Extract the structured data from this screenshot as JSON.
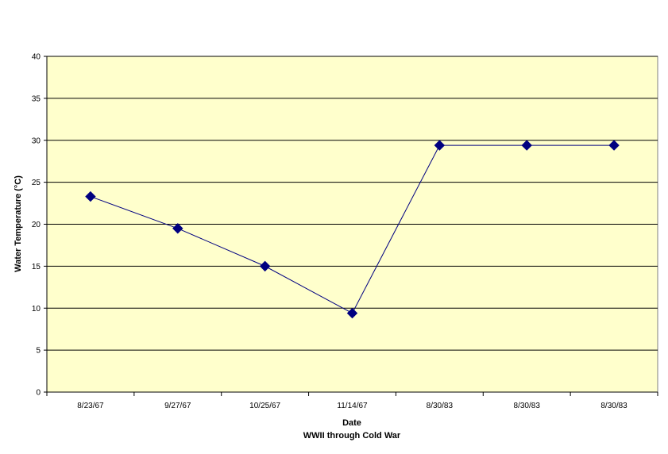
{
  "chart_data": {
    "type": "line",
    "categories": [
      "8/23/67",
      "9/27/67",
      "10/25/67",
      "11/14/67",
      "8/30/83",
      "8/30/83",
      "8/30/83"
    ],
    "series": [
      {
        "values": [
          23.3,
          19.5,
          15.0,
          9.4,
          29.4,
          29.4,
          29.4
        ]
      }
    ],
    "xlabel": "Date",
    "xlabel_sub": "WWII through Cold War",
    "ylabel": "Water Temperature (°C)",
    "ylim": [
      0,
      40
    ],
    "yticks": [
      0,
      5,
      10,
      15,
      20,
      25,
      30,
      35,
      40
    ],
    "grid": "horizontal",
    "legend": "none"
  },
  "colors": {
    "plot_background": "#ffffcc",
    "line": "#000080",
    "marker": "#000080",
    "gridline": "#000000"
  }
}
